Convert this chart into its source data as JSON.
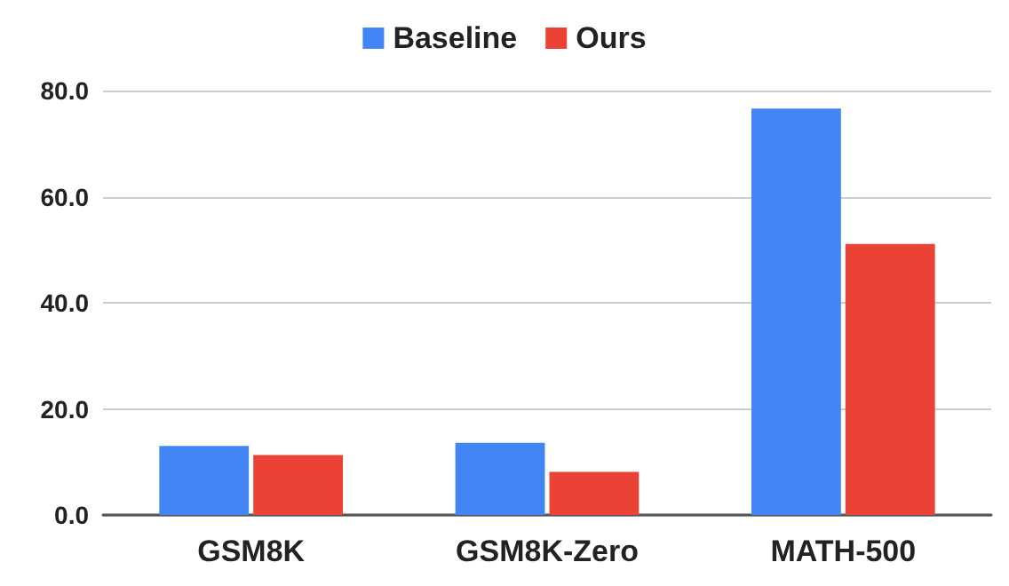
{
  "chart_data": {
    "type": "bar",
    "categories": [
      "GSM8K",
      "GSM8K-Zero",
      "MATH-500"
    ],
    "series": [
      {
        "name": "Baseline",
        "color": "#4285f4",
        "values": [
          13.0,
          13.6,
          76.6
        ]
      },
      {
        "name": "Ours",
        "color": "#ea4335",
        "values": [
          11.3,
          8.1,
          51.1
        ]
      }
    ],
    "ylim": [
      0,
      80
    ],
    "yticks": [
      {
        "value": 0,
        "label": "0.0"
      },
      {
        "value": 20,
        "label": "20.0"
      },
      {
        "value": 40,
        "label": "40.0"
      },
      {
        "value": 60,
        "label": "60.0"
      },
      {
        "value": 80,
        "label": "80.0"
      }
    ],
    "grid": "y",
    "legend": "top"
  }
}
